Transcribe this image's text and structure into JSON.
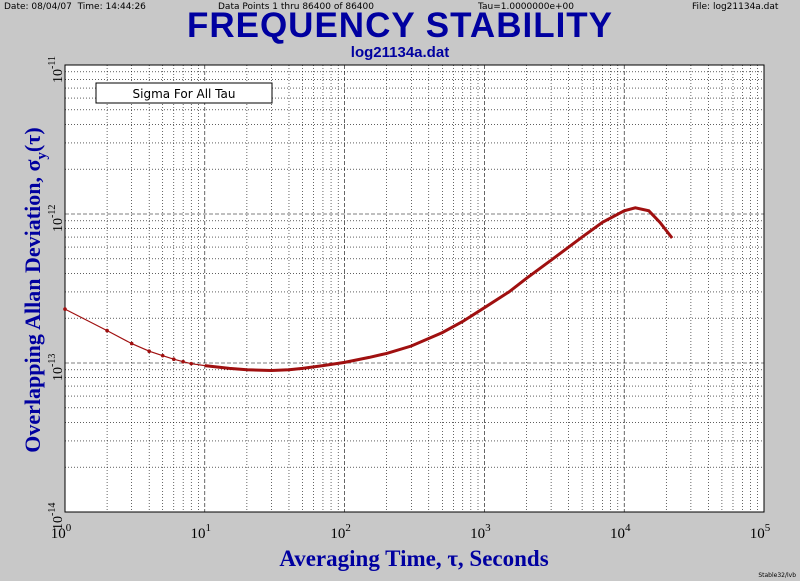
{
  "header": {
    "date": "Date: 08/04/07",
    "time": "Time: 14:44:26",
    "points": "Data Points 1 thru 86400 of 86400",
    "tau": "Tau=1.0000000e+00",
    "file": "File: log21134a.dat"
  },
  "footer": "Stable32/lvb",
  "colors": {
    "background": "#c8c8c8",
    "plot_area": "#ffffff",
    "title": "#0000a0",
    "curve": "#a01010"
  },
  "chart_data": {
    "type": "line",
    "title": "FREQUENCY STABILITY",
    "subtitle": "log21134a.dat",
    "xlabel": "Averaging Time, τ, Seconds",
    "ylabel_main": "Overlapping Allan Deviation, σ",
    "ylabel_sub": "y",
    "ylabel_tail": "(τ)",
    "legend": "Sigma For All Tau",
    "legend_position": "top-left",
    "x_scale": "log",
    "y_scale": "log",
    "xlim": [
      1,
      100000
    ],
    "ylim": [
      1e-14,
      1e-11
    ],
    "grid": true,
    "x_ticks": [
      {
        "base": "10",
        "exp": "0"
      },
      {
        "base": "10",
        "exp": "1"
      },
      {
        "base": "10",
        "exp": "2"
      },
      {
        "base": "10",
        "exp": "3"
      },
      {
        "base": "10",
        "exp": "4"
      },
      {
        "base": "10",
        "exp": "5"
      }
    ],
    "y_ticks": [
      {
        "base": "10",
        "exp": "-14"
      },
      {
        "base": "10",
        "exp": "-13"
      },
      {
        "base": "10",
        "exp": "-12"
      },
      {
        "base": "10",
        "exp": "-11"
      }
    ],
    "series": [
      {
        "x": [
          1,
          2,
          3,
          4,
          5,
          6,
          7,
          8,
          10,
          15,
          20,
          30,
          40,
          50,
          70,
          100,
          150,
          200,
          300,
          500,
          700,
          1000,
          1500,
          2000,
          3000,
          5000,
          7000,
          10000,
          12000,
          15000,
          18000,
          22000
        ],
        "y": [
          2.3e-13,
          1.65e-13,
          1.35e-13,
          1.2e-13,
          1.12e-13,
          1.06e-13,
          1.02e-13,
          9.9e-14,
          9.6e-14,
          9.2e-14,
          9e-14,
          8.9e-14,
          9e-14,
          9.2e-14,
          9.6e-14,
          1.01e-13,
          1.09e-13,
          1.16e-13,
          1.3e-13,
          1.6e-13,
          1.9e-13,
          2.35e-13,
          3e-13,
          3.7e-13,
          4.9e-13,
          7e-13,
          8.8e-13,
          1.05e-12,
          1.1e-12,
          1.05e-12,
          8.8e-13,
          6.9e-13
        ]
      }
    ]
  }
}
